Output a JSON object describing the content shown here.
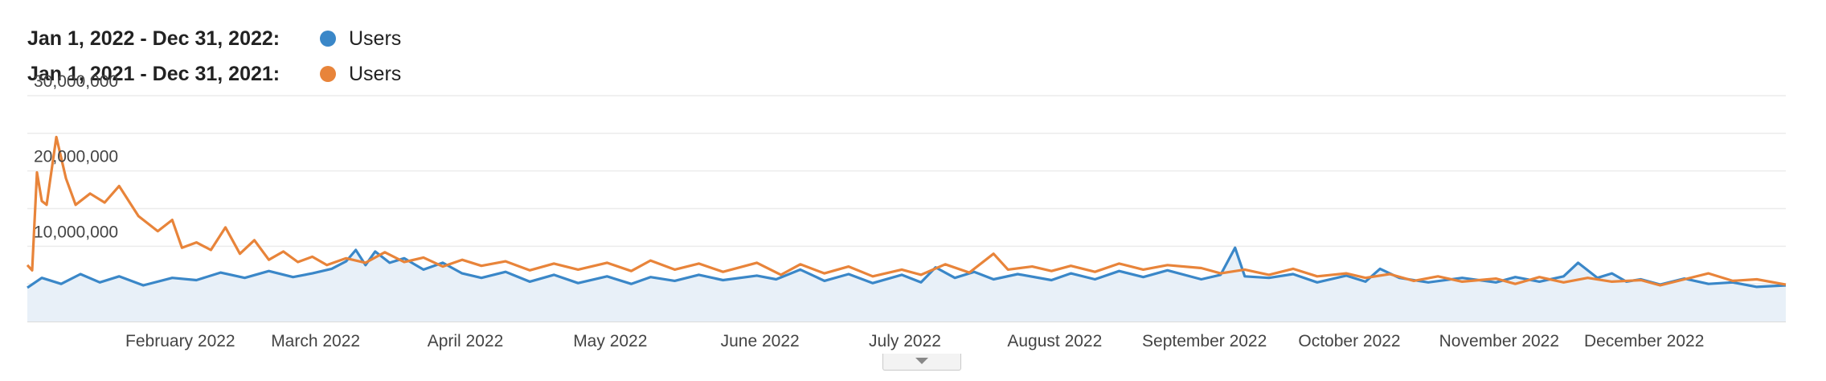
{
  "legend": [
    {
      "range": "Jan 1, 2022 - Dec 31, 2022:",
      "series": "Users",
      "color": "#3a87c8"
    },
    {
      "range": "Jan 1, 2021 - Dec 31, 2021:",
      "series": "Users",
      "color": "#e8843a"
    }
  ],
  "chart_data": {
    "type": "line",
    "title": "",
    "xlabel": "",
    "ylabel": "",
    "ylim": [
      0,
      30000000
    ],
    "grid": true,
    "legend_position": "top-left",
    "y_ticks": [
      "30,000,000",
      "20,000,000",
      "10,000,000"
    ],
    "y_tick_values": [
      30000000,
      20000000,
      10000000
    ],
    "x_tick_labels": [
      "February 2022",
      "March 2022",
      "April 2022",
      "May 2022",
      "June 2022",
      "July 2022",
      "August 2022",
      "September 2022",
      "October 2022",
      "November 2022",
      "December 2022"
    ],
    "x_tick_dates": [
      "2022-02-01",
      "2022-03-01",
      "2022-04-01",
      "2022-05-01",
      "2022-06-01",
      "2022-07-01",
      "2022-08-01",
      "2022-09-01",
      "2022-10-01",
      "2022-11-01",
      "2022-12-01"
    ],
    "x_range": [
      "2022-01-01",
      "2022-12-31"
    ],
    "series": [
      {
        "name": "Users",
        "period": "Jan 1, 2022 - Dec 31, 2022",
        "color": "#3a87c8",
        "filled": true,
        "points": [
          [
            "2022-01-01",
            4500000
          ],
          [
            "2022-01-04",
            5800000
          ],
          [
            "2022-01-08",
            5000000
          ],
          [
            "2022-01-12",
            6300000
          ],
          [
            "2022-01-16",
            5200000
          ],
          [
            "2022-01-20",
            6000000
          ],
          [
            "2022-01-25",
            4800000
          ],
          [
            "2022-01-31",
            5800000
          ],
          [
            "2022-02-05",
            5500000
          ],
          [
            "2022-02-10",
            6500000
          ],
          [
            "2022-02-15",
            5800000
          ],
          [
            "2022-02-20",
            6700000
          ],
          [
            "2022-02-25",
            5900000
          ],
          [
            "2022-03-01",
            6400000
          ],
          [
            "2022-03-05",
            7000000
          ],
          [
            "2022-03-08",
            8000000
          ],
          [
            "2022-03-10",
            9500000
          ],
          [
            "2022-03-12",
            7500000
          ],
          [
            "2022-03-14",
            9300000
          ],
          [
            "2022-03-17",
            7800000
          ],
          [
            "2022-03-20",
            8400000
          ],
          [
            "2022-03-24",
            6900000
          ],
          [
            "2022-03-28",
            7800000
          ],
          [
            "2022-04-01",
            6400000
          ],
          [
            "2022-04-05",
            5800000
          ],
          [
            "2022-04-10",
            6600000
          ],
          [
            "2022-04-15",
            5300000
          ],
          [
            "2022-04-20",
            6200000
          ],
          [
            "2022-04-25",
            5100000
          ],
          [
            "2022-05-01",
            6000000
          ],
          [
            "2022-05-06",
            5000000
          ],
          [
            "2022-05-10",
            5900000
          ],
          [
            "2022-05-15",
            5400000
          ],
          [
            "2022-05-20",
            6200000
          ],
          [
            "2022-05-25",
            5500000
          ],
          [
            "2022-06-01",
            6100000
          ],
          [
            "2022-06-05",
            5600000
          ],
          [
            "2022-06-10",
            6900000
          ],
          [
            "2022-06-15",
            5400000
          ],
          [
            "2022-06-20",
            6300000
          ],
          [
            "2022-06-25",
            5100000
          ],
          [
            "2022-07-01",
            6200000
          ],
          [
            "2022-07-05",
            5200000
          ],
          [
            "2022-07-08",
            7200000
          ],
          [
            "2022-07-12",
            5800000
          ],
          [
            "2022-07-16",
            6600000
          ],
          [
            "2022-07-20",
            5600000
          ],
          [
            "2022-07-25",
            6300000
          ],
          [
            "2022-08-01",
            5500000
          ],
          [
            "2022-08-05",
            6400000
          ],
          [
            "2022-08-10",
            5600000
          ],
          [
            "2022-08-15",
            6700000
          ],
          [
            "2022-08-20",
            5900000
          ],
          [
            "2022-08-25",
            6800000
          ],
          [
            "2022-09-01",
            5600000
          ],
          [
            "2022-09-05",
            6200000
          ],
          [
            "2022-09-08",
            9800000
          ],
          [
            "2022-09-10",
            6000000
          ],
          [
            "2022-09-15",
            5800000
          ],
          [
            "2022-09-20",
            6300000
          ],
          [
            "2022-09-25",
            5200000
          ],
          [
            "2022-10-01",
            6100000
          ],
          [
            "2022-10-05",
            5300000
          ],
          [
            "2022-10-08",
            7000000
          ],
          [
            "2022-10-12",
            5800000
          ],
          [
            "2022-10-18",
            5200000
          ],
          [
            "2022-10-25",
            5800000
          ],
          [
            "2022-11-01",
            5200000
          ],
          [
            "2022-11-05",
            5900000
          ],
          [
            "2022-11-10",
            5300000
          ],
          [
            "2022-11-15",
            6000000
          ],
          [
            "2022-11-18",
            7800000
          ],
          [
            "2022-11-22",
            5800000
          ],
          [
            "2022-11-25",
            6400000
          ],
          [
            "2022-11-28",
            5300000
          ],
          [
            "2022-12-01",
            5600000
          ],
          [
            "2022-12-05",
            4900000
          ],
          [
            "2022-12-10",
            5700000
          ],
          [
            "2022-12-15",
            5000000
          ],
          [
            "2022-12-20",
            5200000
          ],
          [
            "2022-12-25",
            4600000
          ],
          [
            "2022-12-31",
            4800000
          ]
        ]
      },
      {
        "name": "Users",
        "period": "Jan 1, 2021 - Dec 31, 2021",
        "color": "#e8843a",
        "filled": false,
        "points": [
          [
            "2022-01-01",
            7500000
          ],
          [
            "2022-01-02",
            6800000
          ],
          [
            "2022-01-03",
            19800000
          ],
          [
            "2022-01-04",
            16000000
          ],
          [
            "2022-01-05",
            15500000
          ],
          [
            "2022-01-07",
            24500000
          ],
          [
            "2022-01-09",
            19000000
          ],
          [
            "2022-01-11",
            15500000
          ],
          [
            "2022-01-14",
            17000000
          ],
          [
            "2022-01-17",
            15800000
          ],
          [
            "2022-01-20",
            18000000
          ],
          [
            "2022-01-24",
            14000000
          ],
          [
            "2022-01-28",
            12000000
          ],
          [
            "2022-01-31",
            13500000
          ],
          [
            "2022-02-02",
            9800000
          ],
          [
            "2022-02-05",
            10500000
          ],
          [
            "2022-02-08",
            9500000
          ],
          [
            "2022-02-11",
            12500000
          ],
          [
            "2022-02-14",
            9000000
          ],
          [
            "2022-02-17",
            10800000
          ],
          [
            "2022-02-20",
            8200000
          ],
          [
            "2022-02-23",
            9300000
          ],
          [
            "2022-02-26",
            7900000
          ],
          [
            "2022-03-01",
            8600000
          ],
          [
            "2022-03-04",
            7500000
          ],
          [
            "2022-03-08",
            8400000
          ],
          [
            "2022-03-12",
            7800000
          ],
          [
            "2022-03-16",
            9200000
          ],
          [
            "2022-03-20",
            7900000
          ],
          [
            "2022-03-24",
            8500000
          ],
          [
            "2022-03-28",
            7300000
          ],
          [
            "2022-04-01",
            8200000
          ],
          [
            "2022-04-05",
            7400000
          ],
          [
            "2022-04-10",
            8000000
          ],
          [
            "2022-04-15",
            6800000
          ],
          [
            "2022-04-20",
            7700000
          ],
          [
            "2022-04-25",
            6900000
          ],
          [
            "2022-05-01",
            7800000
          ],
          [
            "2022-05-06",
            6700000
          ],
          [
            "2022-05-10",
            8100000
          ],
          [
            "2022-05-15",
            6900000
          ],
          [
            "2022-05-20",
            7700000
          ],
          [
            "2022-05-25",
            6600000
          ],
          [
            "2022-06-01",
            7800000
          ],
          [
            "2022-06-06",
            6200000
          ],
          [
            "2022-06-10",
            7600000
          ],
          [
            "2022-06-15",
            6400000
          ],
          [
            "2022-06-20",
            7300000
          ],
          [
            "2022-06-25",
            6000000
          ],
          [
            "2022-07-01",
            6900000
          ],
          [
            "2022-07-05",
            6200000
          ],
          [
            "2022-07-10",
            7600000
          ],
          [
            "2022-07-15",
            6500000
          ],
          [
            "2022-07-20",
            9000000
          ],
          [
            "2022-07-23",
            6900000
          ],
          [
            "2022-07-28",
            7300000
          ],
          [
            "2022-08-01",
            6700000
          ],
          [
            "2022-08-05",
            7400000
          ],
          [
            "2022-08-10",
            6600000
          ],
          [
            "2022-08-15",
            7700000
          ],
          [
            "2022-08-20",
            6900000
          ],
          [
            "2022-08-25",
            7500000
          ],
          [
            "2022-09-01",
            7100000
          ],
          [
            "2022-09-05",
            6400000
          ],
          [
            "2022-09-10",
            6900000
          ],
          [
            "2022-09-15",
            6200000
          ],
          [
            "2022-09-20",
            7000000
          ],
          [
            "2022-09-25",
            6000000
          ],
          [
            "2022-10-01",
            6400000
          ],
          [
            "2022-10-05",
            5800000
          ],
          [
            "2022-10-10",
            6300000
          ],
          [
            "2022-10-15",
            5400000
          ],
          [
            "2022-10-20",
            6000000
          ],
          [
            "2022-10-25",
            5300000
          ],
          [
            "2022-11-01",
            5700000
          ],
          [
            "2022-11-05",
            5000000
          ],
          [
            "2022-11-10",
            5900000
          ],
          [
            "2022-11-15",
            5200000
          ],
          [
            "2022-11-20",
            5800000
          ],
          [
            "2022-11-25",
            5300000
          ],
          [
            "2022-12-01",
            5500000
          ],
          [
            "2022-12-05",
            4800000
          ],
          [
            "2022-12-10",
            5600000
          ],
          [
            "2022-12-15",
            6400000
          ],
          [
            "2022-12-20",
            5400000
          ],
          [
            "2022-12-25",
            5600000
          ],
          [
            "2022-12-31",
            4900000
          ]
        ]
      }
    ]
  }
}
